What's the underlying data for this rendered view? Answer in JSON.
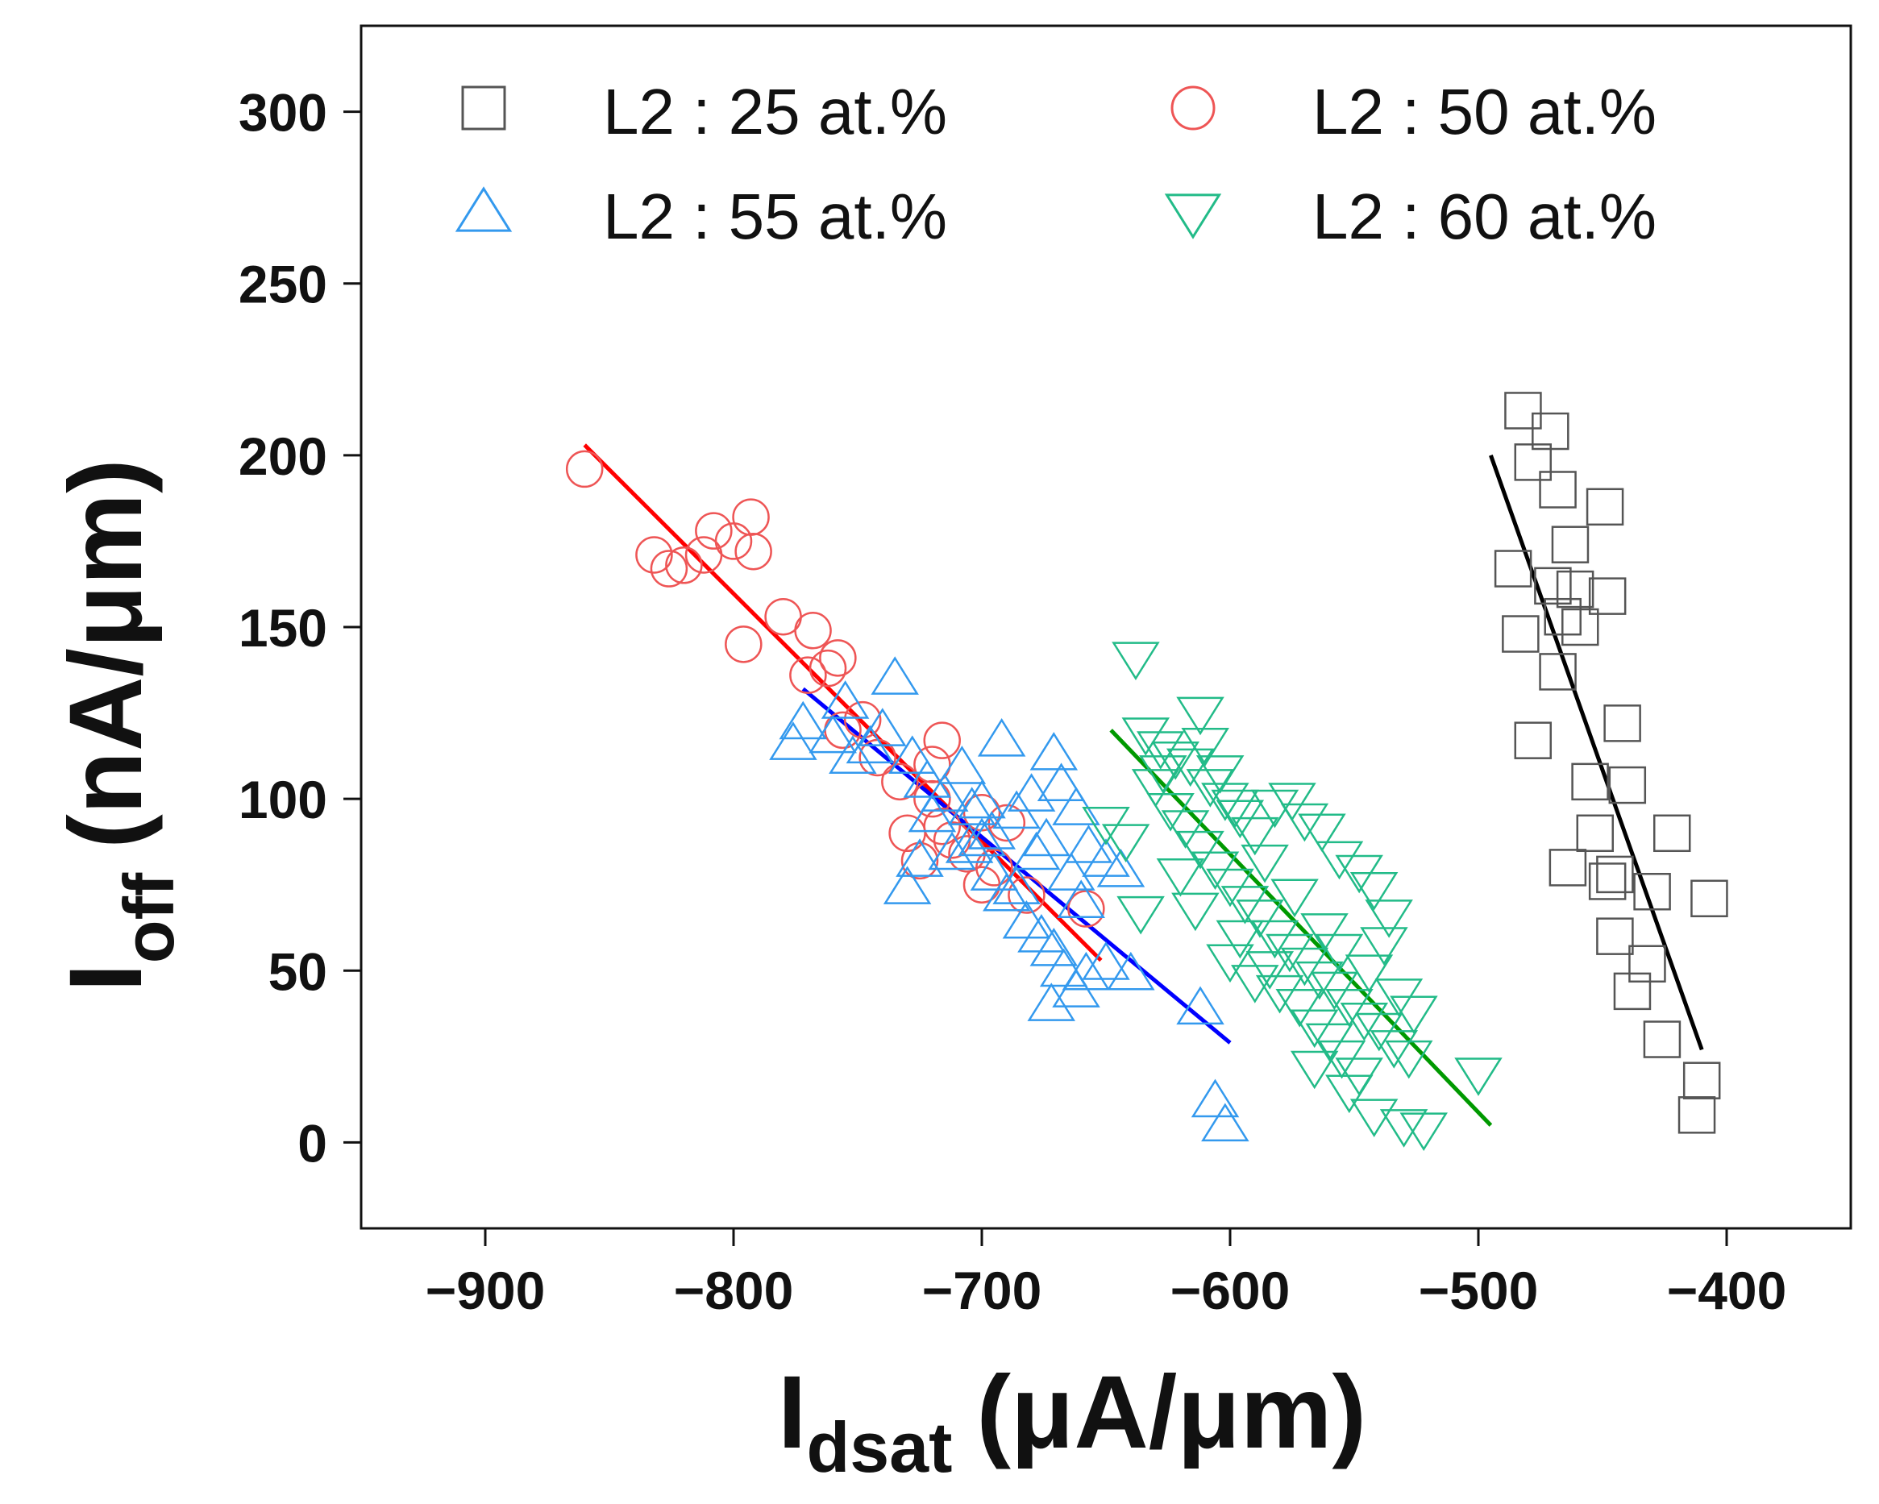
{
  "chart_data": {
    "type": "scatter",
    "xlabel": {
      "main": "I",
      "sub": "dsat",
      "unit": "(μA/μm)"
    },
    "ylabel": {
      "main": "I",
      "sub": "off",
      "unit": "(nA/μm)"
    },
    "xlim": [
      -950,
      -350
    ],
    "ylim": [
      -25,
      325
    ],
    "xticks": [
      -900,
      -800,
      -700,
      -600,
      -500,
      -400
    ],
    "yticks": [
      0,
      50,
      100,
      150,
      200,
      250,
      300
    ],
    "xtick_labels": [
      "−900",
      "−800",
      "−700",
      "−600",
      "−500",
      "−400"
    ],
    "ytick_labels": [
      "0",
      "50",
      "100",
      "150",
      "200",
      "250",
      "300"
    ],
    "legend_position": "top",
    "series": [
      {
        "name": "L2 : 25 at.%",
        "marker": "square",
        "color": "#555555",
        "fit_color": "#000000",
        "fit": [
          [
            -495,
            200
          ],
          [
            -410,
            27
          ]
        ],
        "points": [
          [
            -482,
            213
          ],
          [
            -471,
            207
          ],
          [
            -478,
            198
          ],
          [
            -468,
            190
          ],
          [
            -449,
            185
          ],
          [
            -463,
            174
          ],
          [
            -486,
            167
          ],
          [
            -461,
            161
          ],
          [
            -448,
            159
          ],
          [
            -466,
            153
          ],
          [
            -483,
            148
          ],
          [
            -459,
            150
          ],
          [
            -468,
            137
          ],
          [
            -442,
            122
          ],
          [
            -478,
            117
          ],
          [
            -455,
            105
          ],
          [
            -440,
            104
          ],
          [
            -453,
            90
          ],
          [
            -422,
            90
          ],
          [
            -464,
            80
          ],
          [
            -448,
            76
          ],
          [
            -407,
            71
          ],
          [
            -430,
            73
          ],
          [
            -445,
            60
          ],
          [
            -432,
            52
          ],
          [
            -438,
            44
          ],
          [
            -426,
            30
          ],
          [
            -410,
            18
          ],
          [
            -412,
            8
          ],
          [
            -445,
            78
          ],
          [
            -470,
            162
          ]
        ]
      },
      {
        "name": "L2 : 50 at.%",
        "marker": "circle",
        "color": "#ee5555",
        "fit_color": "#ff0000",
        "fit": [
          [
            -860,
            203
          ],
          [
            -652,
            53
          ]
        ],
        "points": [
          [
            -860,
            196
          ],
          [
            -808,
            178
          ],
          [
            -793,
            182
          ],
          [
            -792,
            172
          ],
          [
            -800,
            175
          ],
          [
            -812,
            171
          ],
          [
            -832,
            171
          ],
          [
            -826,
            167
          ],
          [
            -820,
            168
          ],
          [
            -780,
            153
          ],
          [
            -768,
            149
          ],
          [
            -758,
            141
          ],
          [
            -762,
            138
          ],
          [
            -796,
            145
          ],
          [
            -756,
            120
          ],
          [
            -742,
            112
          ],
          [
            -716,
            117
          ],
          [
            -720,
            110
          ],
          [
            -733,
            105
          ],
          [
            -720,
            100
          ],
          [
            -730,
            90
          ],
          [
            -716,
            92
          ],
          [
            -700,
            96
          ],
          [
            -690,
            93
          ],
          [
            -712,
            88
          ],
          [
            -706,
            84
          ],
          [
            -725,
            82
          ],
          [
            -695,
            80
          ],
          [
            -700,
            75
          ],
          [
            -682,
            72
          ],
          [
            -658,
            68
          ],
          [
            -770,
            136
          ],
          [
            -748,
            123
          ]
        ]
      },
      {
        "name": "L2 : 55 at.%",
        "marker": "triangle-up",
        "color": "#3399ee",
        "fit_color": "#0000ff",
        "fit": [
          [
            -772,
            132
          ],
          [
            -600,
            29
          ]
        ],
        "points": [
          [
            -772,
            122
          ],
          [
            -776,
            116
          ],
          [
            -760,
            118
          ],
          [
            -752,
            112
          ],
          [
            -735,
            135
          ],
          [
            -728,
            112
          ],
          [
            -722,
            105
          ],
          [
            -715,
            101
          ],
          [
            -708,
            109
          ],
          [
            -700,
            99
          ],
          [
            -692,
            117
          ],
          [
            -686,
            96
          ],
          [
            -680,
            101
          ],
          [
            -671,
            113
          ],
          [
            -668,
            104
          ],
          [
            -662,
            97
          ],
          [
            -657,
            86
          ],
          [
            -650,
            82
          ],
          [
            -644,
            79
          ],
          [
            -725,
            82
          ],
          [
            -730,
            74
          ],
          [
            -712,
            84
          ],
          [
            -705,
            86
          ],
          [
            -700,
            88
          ],
          [
            -695,
            78
          ],
          [
            -690,
            72
          ],
          [
            -686,
            74
          ],
          [
            -682,
            64
          ],
          [
            -676,
            60
          ],
          [
            -671,
            56
          ],
          [
            -667,
            50
          ],
          [
            -662,
            44
          ],
          [
            -658,
            49
          ],
          [
            -672,
            40
          ],
          [
            -650,
            52
          ],
          [
            -640,
            49
          ],
          [
            -612,
            39
          ],
          [
            -606,
            12
          ],
          [
            -602,
            5
          ],
          [
            -755,
            128
          ],
          [
            -745,
            115
          ],
          [
            -740,
            120
          ],
          [
            -720,
            95
          ],
          [
            -704,
            97
          ],
          [
            -696,
            90
          ],
          [
            -660,
            70
          ],
          [
            -678,
            84
          ],
          [
            -664,
            78
          ],
          [
            -674,
            88
          ]
        ]
      },
      {
        "name": "L2 : 60 at.%",
        "marker": "triangle-down",
        "color": "#22bb88",
        "fit_color": "#009900",
        "fit": [
          [
            -648,
            120
          ],
          [
            -495,
            5
          ]
        ],
        "points": [
          [
            -638,
            141
          ],
          [
            -612,
            125
          ],
          [
            -628,
            115
          ],
          [
            -622,
            112
          ],
          [
            -616,
            110
          ],
          [
            -608,
            104
          ],
          [
            -602,
            100
          ],
          [
            -596,
            95
          ],
          [
            -590,
            90
          ],
          [
            -582,
            98
          ],
          [
            -575,
            100
          ],
          [
            -570,
            94
          ],
          [
            -563,
            91
          ],
          [
            -556,
            83
          ],
          [
            -548,
            79
          ],
          [
            -542,
            74
          ],
          [
            -536,
            66
          ],
          [
            -630,
            104
          ],
          [
            -624,
            97
          ],
          [
            -618,
            92
          ],
          [
            -612,
            86
          ],
          [
            -606,
            80
          ],
          [
            -600,
            75
          ],
          [
            -594,
            70
          ],
          [
            -588,
            66
          ],
          [
            -582,
            60
          ],
          [
            -576,
            56
          ],
          [
            -570,
            52
          ],
          [
            -564,
            48
          ],
          [
            -558,
            45
          ],
          [
            -552,
            40
          ],
          [
            -546,
            36
          ],
          [
            -540,
            33
          ],
          [
            -534,
            28
          ],
          [
            -528,
            25
          ],
          [
            -500,
            20
          ],
          [
            -650,
            93
          ],
          [
            -642,
            88
          ],
          [
            -636,
            67
          ],
          [
            -600,
            53
          ],
          [
            -590,
            47
          ],
          [
            -580,
            44
          ],
          [
            -566,
            34
          ],
          [
            -560,
            30
          ],
          [
            -555,
            25
          ],
          [
            -548,
            20
          ],
          [
            -542,
            8
          ],
          [
            -530,
            5
          ],
          [
            -522,
            4
          ],
          [
            -610,
            116
          ],
          [
            -604,
            108
          ],
          [
            -598,
            98
          ],
          [
            -586,
            82
          ],
          [
            -574,
            72
          ],
          [
            -562,
            62
          ],
          [
            -556,
            56
          ],
          [
            -544,
            50
          ],
          [
            -538,
            58
          ],
          [
            -532,
            43
          ],
          [
            -526,
            38
          ],
          [
            -620,
            78
          ],
          [
            -614,
            68
          ],
          [
            -596,
            60
          ],
          [
            -584,
            51
          ],
          [
            -572,
            40
          ],
          [
            -566,
            22
          ],
          [
            -552,
            15
          ],
          [
            -634,
            119
          ],
          [
            -627,
            108
          ]
        ]
      }
    ]
  }
}
